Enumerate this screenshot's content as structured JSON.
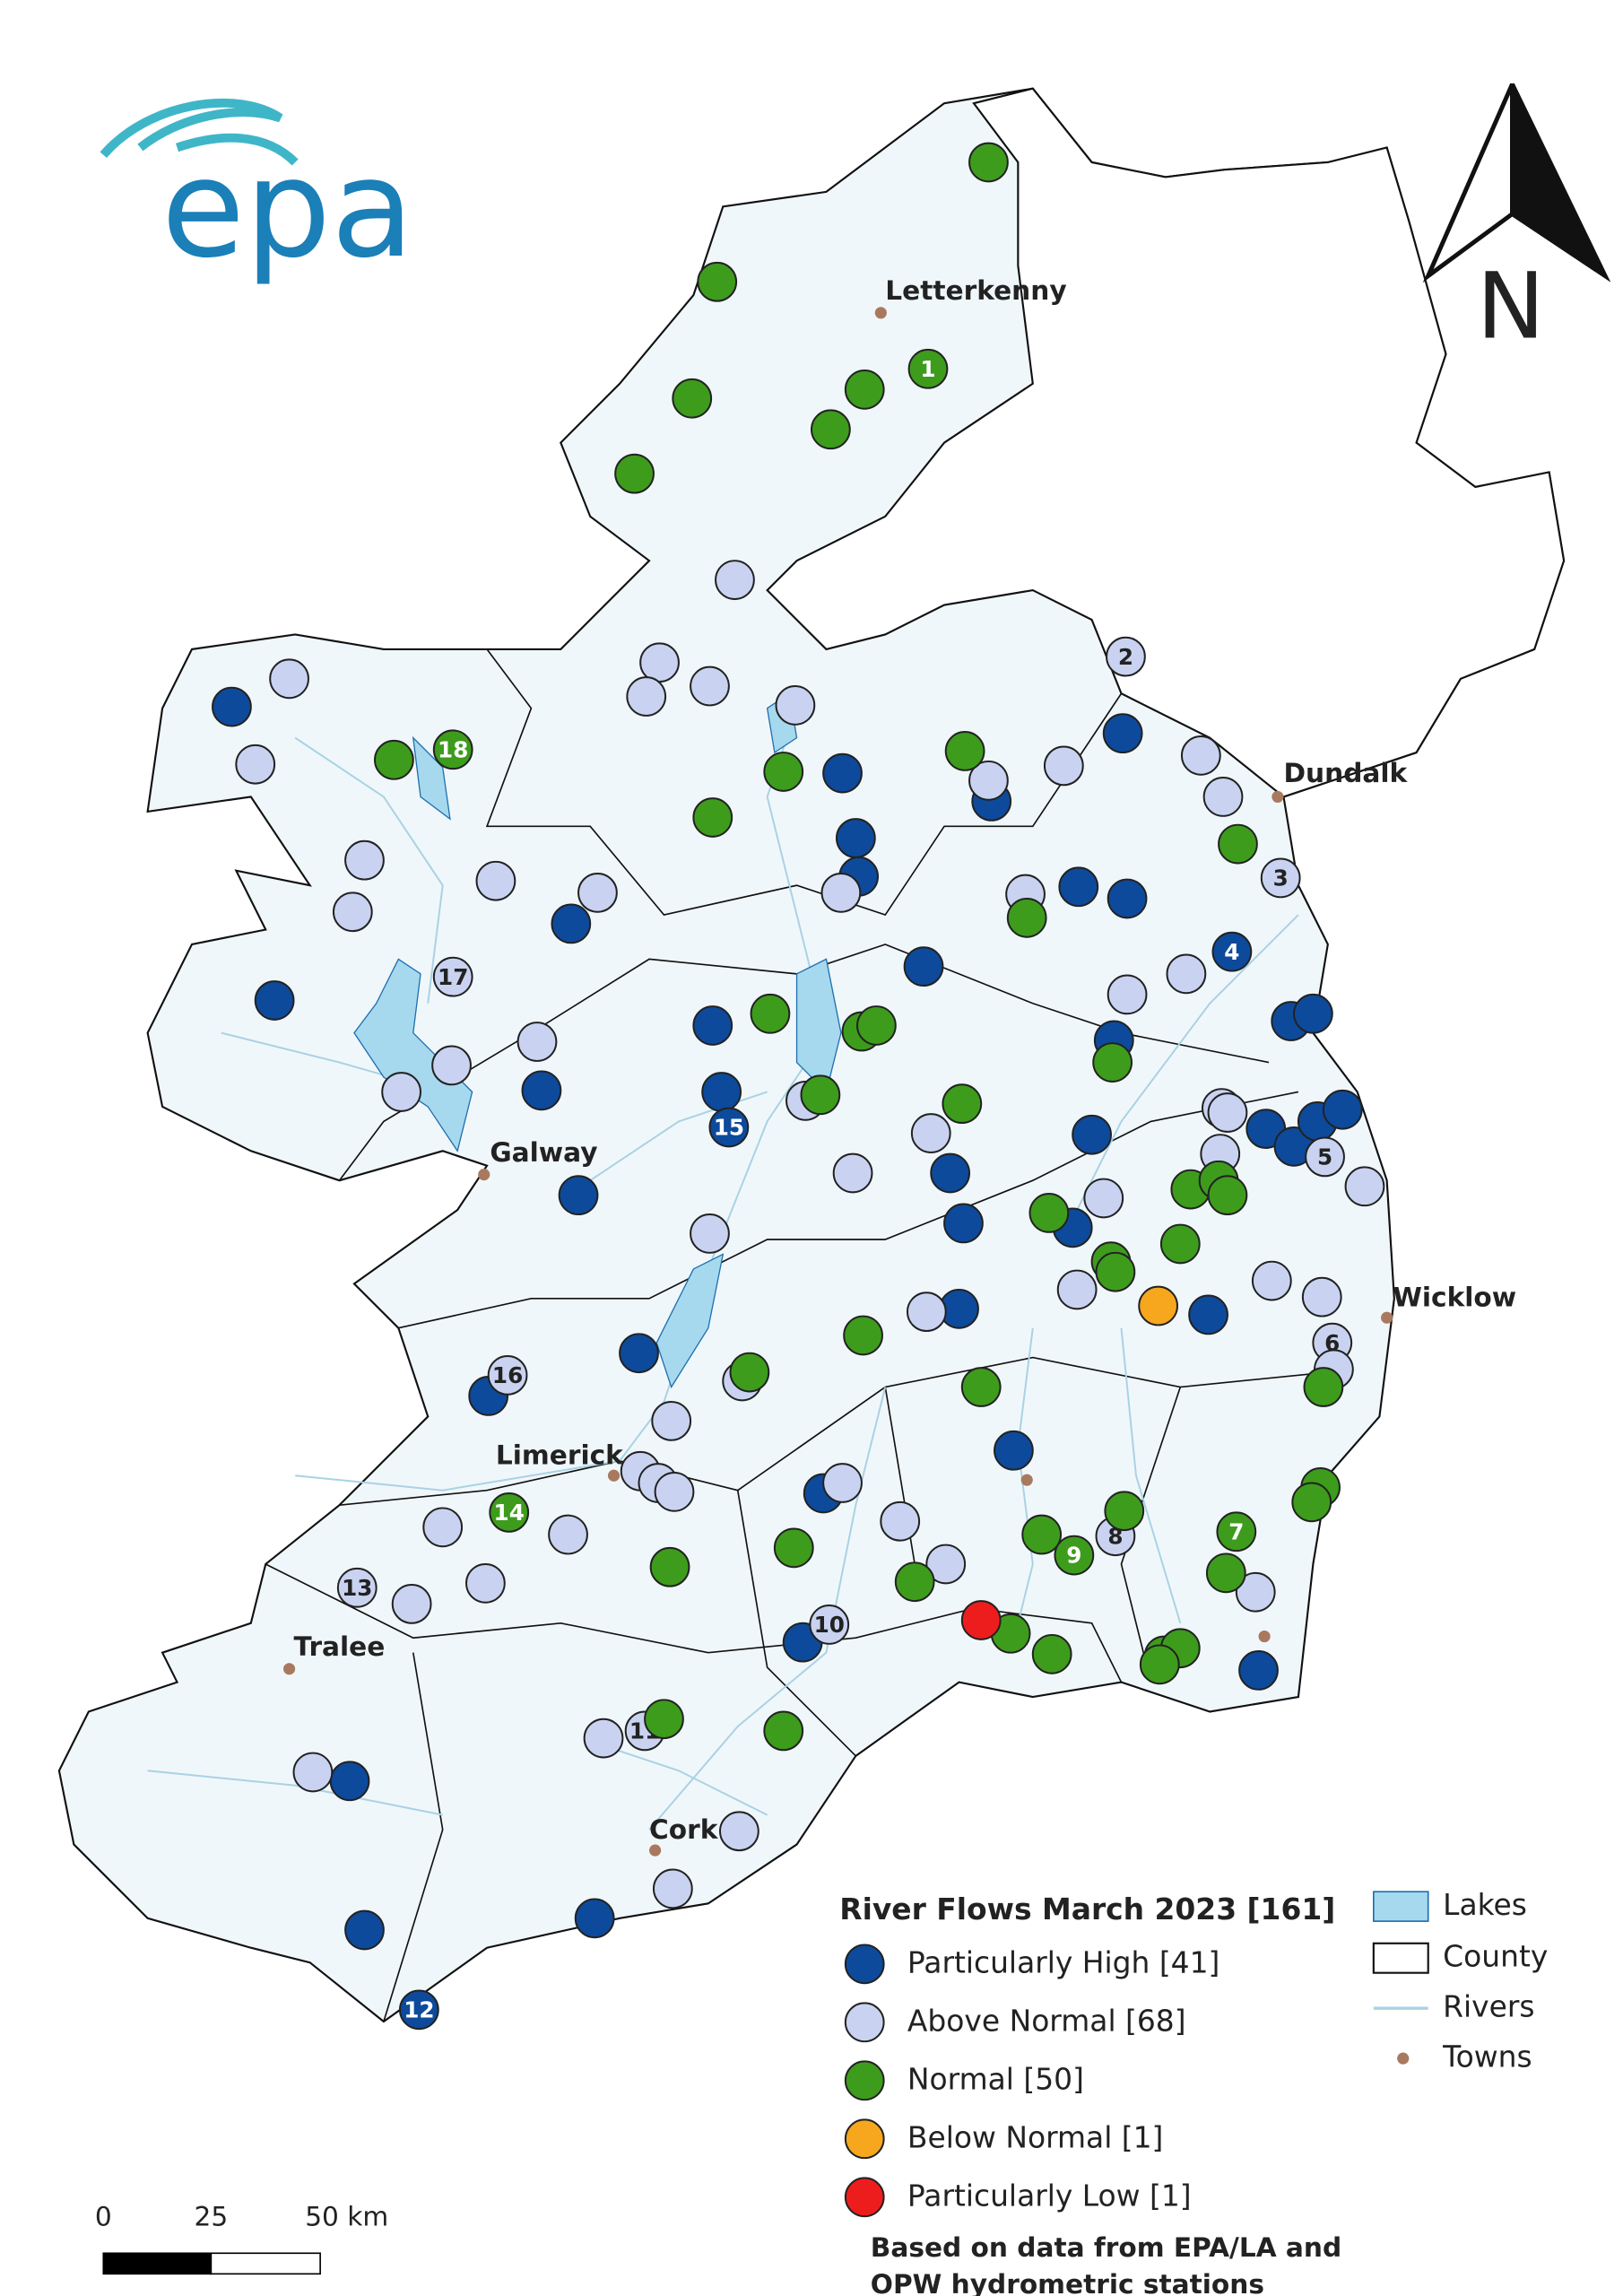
{
  "logo": "epa",
  "north_arrow": "N",
  "towns": [
    "Letterkenny",
    "Dundalk",
    "Galway",
    "Wicklow",
    "Limerick",
    "Tralee",
    "Cork"
  ],
  "station_labels": [
    "1",
    "2",
    "3",
    "4",
    "5",
    "6",
    "7",
    "8",
    "9",
    "10",
    "11",
    "12",
    "13",
    "14",
    "15",
    "16",
    "17",
    "18"
  ],
  "legend": {
    "title": "River Flows March 2023 [161]",
    "items": [
      {
        "label": "Particularly High [41]",
        "color": "#0d4a9b"
      },
      {
        "label": "Above Normal [68]",
        "color": "#c9d3f1"
      },
      {
        "label": "Normal [50]",
        "color": "#3d9c1c"
      },
      {
        "label": "Below Normal [1]",
        "color": "#f6a71d"
      },
      {
        "label": "Particularly Low [1]",
        "color": "#ee1d1d"
      }
    ]
  },
  "layers": [
    "Lakes",
    "County",
    "Rivers",
    "Towns"
  ],
  "scale_bar": [
    "0",
    "25",
    "50 km"
  ],
  "note": [
    "Based on data from EPA/LA and",
    "OPW hydrometric stations"
  ]
}
